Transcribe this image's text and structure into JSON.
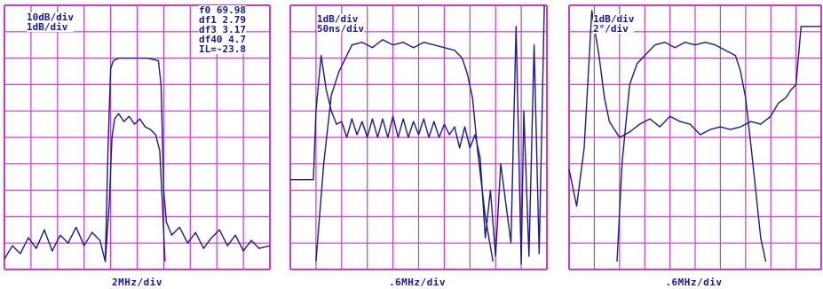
{
  "colors": {
    "grid": "#c83cc8",
    "trace": "#1a1a8c",
    "background": "#ffffff"
  },
  "chart_data": [
    {
      "type": "line",
      "grid": true,
      "grid_divisions": {
        "x": 10,
        "y": 10
      },
      "readouts": [
        "10dB/div",
        "1dB/div"
      ],
      "markers": [
        "f0 69.98",
        "df1 2.79",
        "df3 3.17",
        "df40 4.7",
        "IL=-23.8"
      ],
      "xlabel": "2MHz/div",
      "xlim": [
        0,
        10
      ],
      "ylim": [
        0,
        10
      ],
      "series": [
        {
          "x": [
            0,
            0.3,
            0.6,
            0.9,
            1.2,
            1.5,
            1.8,
            2.1,
            2.4,
            2.7,
            3.0,
            3.3,
            3.6,
            3.8,
            3.9,
            4.0,
            4.1,
            4.3,
            4.6,
            5.0,
            5.4,
            5.8,
            5.9,
            6.0,
            6.1,
            6.3,
            6.6,
            6.9,
            7.2,
            7.5,
            7.8,
            8.1,
            8.4,
            8.7,
            9.0,
            9.3,
            9.6,
            10
          ],
          "y": [
            0.4,
            0.9,
            0.6,
            1.2,
            0.8,
            1.5,
            0.7,
            1.3,
            1.0,
            1.6,
            0.9,
            1.4,
            1.1,
            0.3,
            4.5,
            7.6,
            7.9,
            8.0,
            8.0,
            8.0,
            8.0,
            7.9,
            7.0,
            3.0,
            1.8,
            1.3,
            1.6,
            1.0,
            1.4,
            0.8,
            1.2,
            1.5,
            0.9,
            1.3,
            0.7,
            1.1,
            0.8,
            0.9
          ]
        },
        {
          "x": [
            3.8,
            3.95,
            4.05,
            4.15,
            4.3,
            4.5,
            4.7,
            4.9,
            5.1,
            5.3,
            5.5,
            5.7,
            5.85,
            5.95,
            6.05
          ],
          "y": [
            0.3,
            2.5,
            5.0,
            5.7,
            5.9,
            5.6,
            5.8,
            5.5,
            5.7,
            5.4,
            5.3,
            5.1,
            4.5,
            2.5,
            0.3
          ]
        }
      ]
    },
    {
      "type": "line",
      "grid": true,
      "grid_divisions": {
        "x": 10,
        "y": 10
      },
      "readouts": [
        "1dB/div",
        "50ns/div"
      ],
      "xlabel": ".6MHz/div",
      "xlim": [
        0,
        10
      ],
      "ylim": [
        0,
        10
      ],
      "series": [
        {
          "x": [
            0,
            0.9,
            1.0,
            1.2,
            1.4,
            1.6,
            1.8,
            2.0,
            2.2,
            2.4,
            2.6,
            2.8,
            3.0,
            3.2,
            3.4,
            3.6,
            3.8,
            4.0,
            4.2,
            4.4,
            4.6,
            4.8,
            5.0,
            5.2,
            5.4,
            5.6,
            5.8,
            6.0,
            6.2,
            6.4,
            6.6,
            6.8,
            7.0,
            7.2,
            7.4,
            7.6,
            7.8,
            8.0,
            8.2,
            8.6,
            8.8,
            9.0,
            9.1,
            9.3,
            9.5,
            9.7,
            9.9
          ],
          "y": [
            3.4,
            3.4,
            6.0,
            8.1,
            6.8,
            6.0,
            5.5,
            5.6,
            5.0,
            5.7,
            5.1,
            5.6,
            5.0,
            5.7,
            5.0,
            5.7,
            5.0,
            5.8,
            5.0,
            5.7,
            5.0,
            5.6,
            5.1,
            5.7,
            5.0,
            5.6,
            5.0,
            5.5,
            5.1,
            5.4,
            4.6,
            5.4,
            4.6,
            5.1,
            4.2,
            1.2,
            3.0,
            0.5,
            4.0,
            1.0,
            9.2,
            0.2,
            6.0,
            0.5,
            8.5,
            0.6,
            10.0
          ]
        },
        {
          "x": [
            1.0,
            1.3,
            1.6,
            1.9,
            2.1,
            2.2,
            2.4,
            2.8,
            3.2,
            3.6,
            4.0,
            4.4,
            4.8,
            5.2,
            5.6,
            6.0,
            6.4,
            6.7,
            6.9,
            7.1,
            7.3,
            7.6,
            7.9
          ],
          "y": [
            0.3,
            4.0,
            6.6,
            7.5,
            7.9,
            8.1,
            8.5,
            8.6,
            8.4,
            8.7,
            8.5,
            8.6,
            8.4,
            8.6,
            8.5,
            8.4,
            8.3,
            8.0,
            7.4,
            6.5,
            4.5,
            2.0,
            0.3
          ]
        }
      ]
    },
    {
      "type": "line",
      "grid": true,
      "grid_divisions": {
        "x": 10,
        "y": 10
      },
      "readouts": [
        "1dB/div",
        "2°/div"
      ],
      "xlabel": ".6MHz/div",
      "xlim": [
        0,
        10
      ],
      "ylim": [
        0,
        10
      ],
      "series": [
        {
          "x": [
            0,
            0.3,
            0.6,
            0.9,
            1.2,
            1.4,
            1.6,
            2.0,
            2.4,
            2.8,
            3.2,
            3.6,
            4.0,
            4.4,
            4.8,
            5.2,
            5.6,
            6.0,
            6.4,
            6.8,
            7.2,
            7.6,
            8.0,
            8.3,
            8.6,
            8.8,
            9.0,
            9.2,
            9.6,
            10
          ],
          "y": [
            3.8,
            2.4,
            4.6,
            9.8,
            8.0,
            6.5,
            5.6,
            5.0,
            5.2,
            5.5,
            5.7,
            5.4,
            5.8,
            5.6,
            5.5,
            5.1,
            5.3,
            5.4,
            5.3,
            5.4,
            5.6,
            5.5,
            5.8,
            6.3,
            6.5,
            6.8,
            7.0,
            9.2,
            9.2,
            9.2
          ]
        },
        {
          "x": [
            1.9,
            2.1,
            2.4,
            2.7,
            3.0,
            3.4,
            3.8,
            4.2,
            4.6,
            5.0,
            5.4,
            5.8,
            6.2,
            6.6,
            6.8,
            7.0,
            7.2,
            7.4,
            7.6,
            7.8
          ],
          "y": [
            0.3,
            4.0,
            7.0,
            7.8,
            8.1,
            8.5,
            8.6,
            8.4,
            8.6,
            8.5,
            8.6,
            8.5,
            8.3,
            8.1,
            7.5,
            6.5,
            4.8,
            3.0,
            1.2,
            0.3
          ]
        }
      ]
    }
  ]
}
